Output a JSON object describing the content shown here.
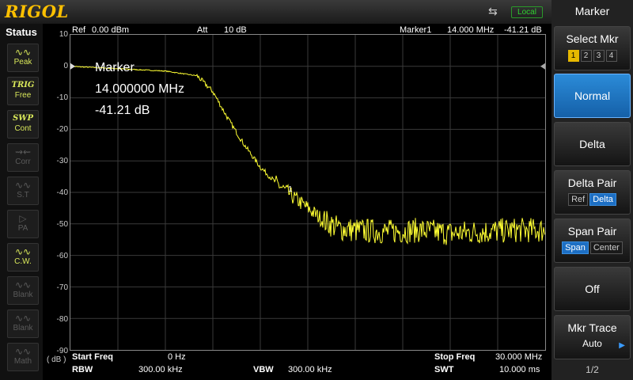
{
  "brand": "RIGOL",
  "local_label": "Local",
  "status": {
    "title": "Status",
    "buttons": [
      {
        "icon": "∿∿",
        "label": "Peak",
        "state": "on"
      },
      {
        "icon": "TRIG",
        "label": "Free",
        "state": "trig"
      },
      {
        "icon": "SWP",
        "label": "Cont",
        "state": "trig"
      },
      {
        "icon": "⇝⇜",
        "label": "Corr",
        "state": "off"
      },
      {
        "icon": "∿∿",
        "label": "S.T",
        "state": "off"
      },
      {
        "icon": "▷",
        "label": "PA",
        "state": "off"
      },
      {
        "icon": "∿∿",
        "label": "C.W.",
        "state": "on"
      },
      {
        "icon": "∿∿",
        "label": "Blank",
        "state": "off"
      },
      {
        "icon": "∿∿",
        "label": "Blank",
        "state": "off"
      },
      {
        "icon": "∿∿",
        "label": "Math",
        "state": "off"
      }
    ]
  },
  "header": {
    "ref_label": "Ref",
    "ref_value": "0.00 dBm",
    "att_label": "Att",
    "att_value": "10 dB",
    "marker_label": "Marker1",
    "marker_freq": "14.000 MHz",
    "marker_level": "-41.21 dB"
  },
  "marker_readout": {
    "title": "Marker",
    "freq": "14.000000 MHz",
    "level": "-41.21 dB",
    "tag": "1"
  },
  "y_axis": {
    "unit": "( dB )",
    "ticks": [
      "10",
      "0",
      "-10",
      "-20",
      "-30",
      "-40",
      "-50",
      "-60",
      "-70",
      "-80",
      "-90"
    ]
  },
  "footer": {
    "start_label": "Start Freq",
    "start_value": "0 Hz",
    "stop_label": "Stop Freq",
    "stop_value": "30.000 MHz",
    "rbw_label": "RBW",
    "rbw_value": "300.00 kHz",
    "vbw_label": "VBW",
    "vbw_value": "300.00 kHz",
    "swt_label": "SWT",
    "swt_value": "10.000 ms"
  },
  "menu": {
    "title": "Marker",
    "select_mkr": {
      "label": "Select Mkr",
      "options": [
        "1",
        "2",
        "3",
        "4"
      ],
      "selected": "1"
    },
    "normal": "Normal",
    "delta": "Delta",
    "delta_pair": {
      "label": "Delta Pair",
      "options": [
        "Ref",
        "Delta"
      ],
      "selected": "Delta"
    },
    "span_pair": {
      "label": "Span Pair",
      "options": [
        "Span",
        "Center"
      ],
      "selected": "Span"
    },
    "off": "Off",
    "mkr_trace": {
      "label": "Mkr Trace",
      "value": "Auto"
    },
    "page": "1/2"
  },
  "chart_data": {
    "type": "line",
    "xlabel": "",
    "ylabel": "( dB )",
    "xlim": [
      0,
      30
    ],
    "ylim": [
      -90,
      10
    ],
    "series": [
      {
        "x": [
          0,
          2,
          4,
          6,
          8,
          9,
          10,
          11,
          12,
          13,
          14,
          15,
          16,
          17,
          18,
          20,
          22,
          24,
          26,
          28,
          30
        ],
        "values": [
          0,
          -0.5,
          -1,
          -1.5,
          -3,
          -8,
          -17,
          -25,
          -32,
          -37,
          -41.2,
          -45,
          -49,
          -51.5,
          -52,
          -52.5,
          -52,
          -53,
          -52.5,
          -52,
          -52
        ]
      }
    ],
    "color": "#ffff33",
    "grid": true
  }
}
